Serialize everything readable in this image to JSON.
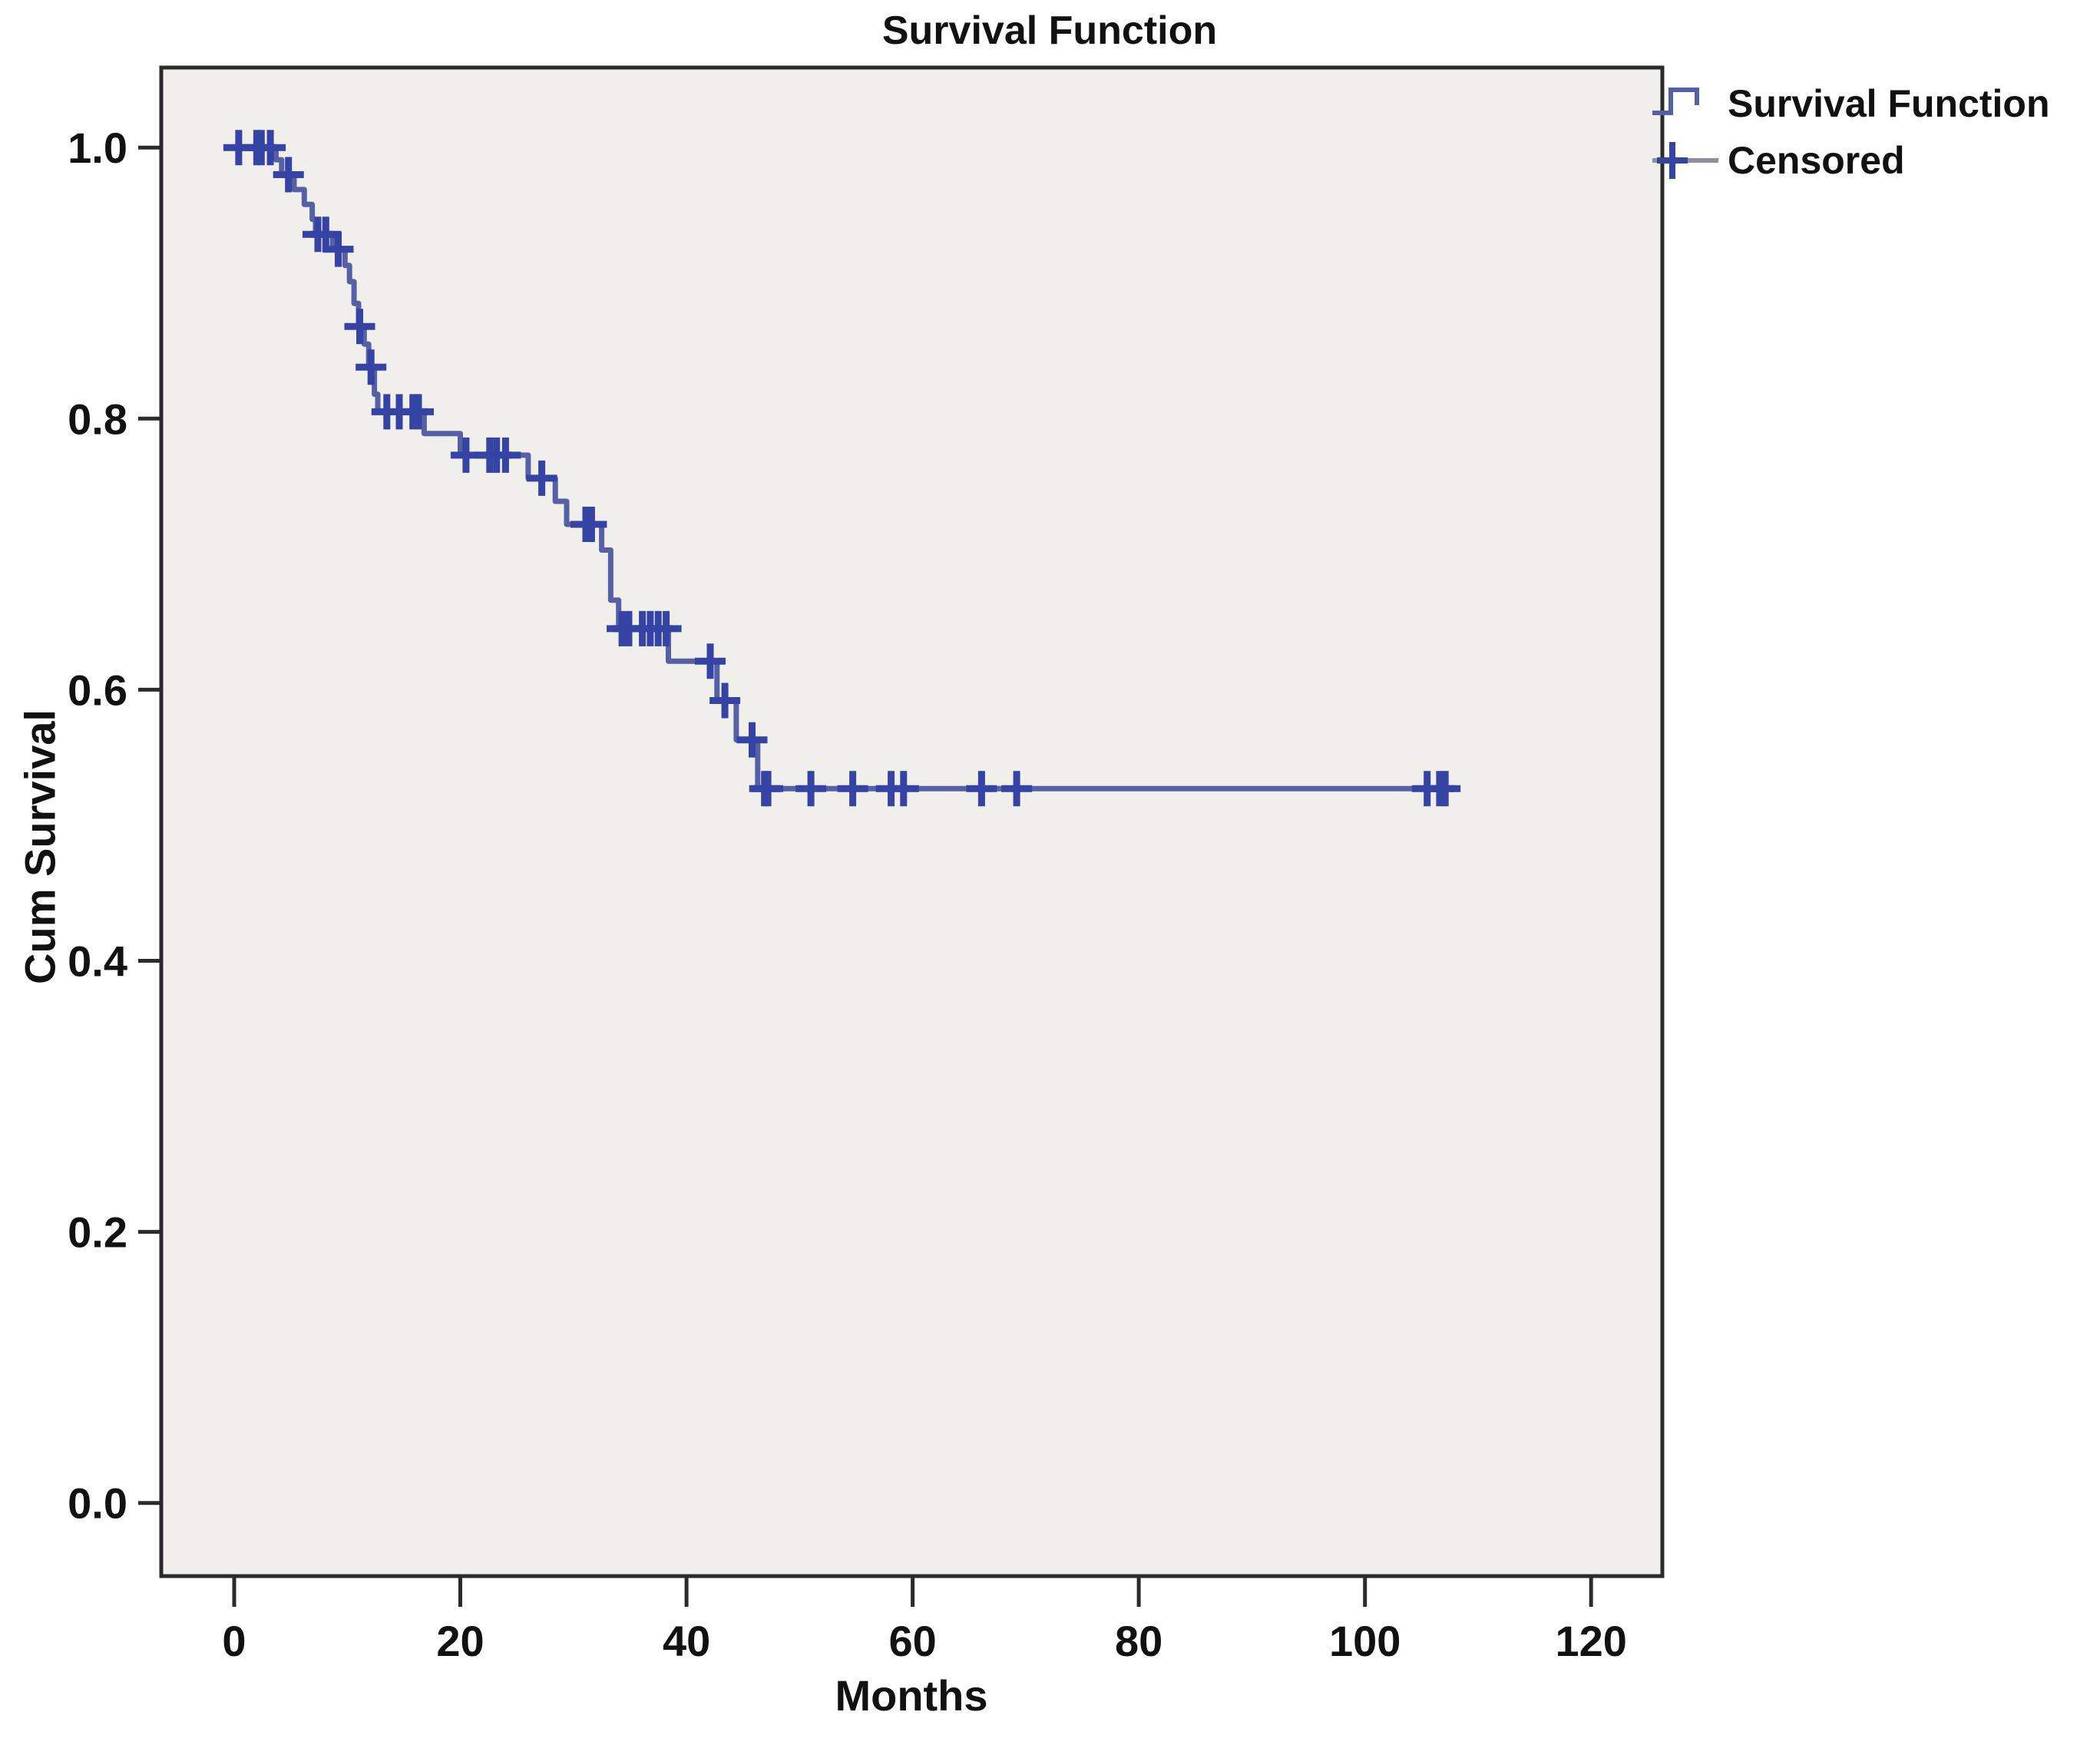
{
  "chart_data": {
    "type": "line",
    "subtype": "kaplan_meier_step",
    "title": "Survival Function",
    "xlabel": "Months",
    "ylabel": "Cum Survival",
    "grid": false,
    "legend_position": "top-right-outside",
    "xlim": [
      -6.45,
      126.3
    ],
    "ylim": [
      -0.054,
      1.059
    ],
    "xticks": {
      "values": [
        0,
        20,
        40,
        60,
        80,
        100,
        120
      ],
      "labels": [
        "0",
        "20",
        "40",
        "60",
        "80",
        "100",
        "120"
      ]
    },
    "yticks": {
      "values": [
        0.0,
        0.2,
        0.4,
        0.6,
        0.8,
        1.0
      ],
      "labels": [
        "0.0",
        "0.2",
        "0.4",
        "0.6",
        "0.8",
        "1.0"
      ]
    },
    "colors": {
      "line": "#5661a5",
      "censor": "#3443a4",
      "legend_censor_line": "#8a8fa3",
      "plot_bg": "#f0efec",
      "frame": "#2b2b2b",
      "text": "#111111",
      "canvas_bg": "#ffffff"
    },
    "series": [
      {
        "name": "Survival Function",
        "color": "#5661a5",
        "start": [
          0,
          1.0
        ],
        "steps": [
          [
            3.7,
            0.991
          ],
          [
            4.2,
            0.98
          ],
          [
            5.3,
            0.969
          ],
          [
            6.2,
            0.958
          ],
          [
            6.9,
            0.947
          ],
          [
            7.2,
            0.936
          ],
          [
            8.7,
            0.925
          ],
          [
            9.8,
            0.913
          ],
          [
            10.2,
            0.901
          ],
          [
            10.6,
            0.885
          ],
          [
            11.0,
            0.868
          ],
          [
            11.5,
            0.855
          ],
          [
            11.9,
            0.838
          ],
          [
            12.4,
            0.818
          ],
          [
            12.7,
            0.805
          ],
          [
            16.8,
            0.789
          ],
          [
            20.0,
            0.773
          ],
          [
            26.0,
            0.756
          ],
          [
            28.4,
            0.739
          ],
          [
            29.4,
            0.722
          ],
          [
            32.5,
            0.703
          ],
          [
            33.3,
            0.666
          ],
          [
            34.0,
            0.645
          ],
          [
            38.4,
            0.621
          ],
          [
            42.7,
            0.592
          ],
          [
            44.4,
            0.563
          ],
          [
            46.3,
            0.527
          ]
        ],
        "end_time": 107.8,
        "final_value": 0.527
      }
    ],
    "censored": {
      "name": "Censored",
      "marker": "plus",
      "color": "#3443a4",
      "points": [
        [
          0.4,
          1.0
        ],
        [
          2.0,
          1.0
        ],
        [
          2.4,
          1.0
        ],
        [
          3.2,
          1.0
        ],
        [
          4.8,
          0.98
        ],
        [
          7.4,
          0.936
        ],
        [
          8.1,
          0.936
        ],
        [
          9.2,
          0.925
        ],
        [
          11.1,
          0.868
        ],
        [
          12.1,
          0.838
        ],
        [
          13.5,
          0.805
        ],
        [
          14.6,
          0.805
        ],
        [
          15.8,
          0.805
        ],
        [
          16.3,
          0.805
        ],
        [
          20.5,
          0.773
        ],
        [
          22.6,
          0.773
        ],
        [
          23.2,
          0.773
        ],
        [
          24.0,
          0.773
        ],
        [
          27.2,
          0.756
        ],
        [
          31.1,
          0.722
        ],
        [
          31.6,
          0.722
        ],
        [
          34.3,
          0.645
        ],
        [
          34.9,
          0.645
        ],
        [
          36.1,
          0.645
        ],
        [
          36.8,
          0.645
        ],
        [
          37.5,
          0.645
        ],
        [
          38.2,
          0.645
        ],
        [
          42.1,
          0.621
        ],
        [
          43.4,
          0.592
        ],
        [
          45.8,
          0.563
        ],
        [
          46.9,
          0.527
        ],
        [
          47.2,
          0.527
        ],
        [
          51.0,
          0.527
        ],
        [
          54.7,
          0.527
        ],
        [
          58.1,
          0.527
        ],
        [
          59.2,
          0.527
        ],
        [
          66.1,
          0.527
        ],
        [
          69.2,
          0.527
        ],
        [
          105.5,
          0.527
        ],
        [
          106.6,
          0.527
        ],
        [
          107.1,
          0.527
        ]
      ]
    }
  }
}
